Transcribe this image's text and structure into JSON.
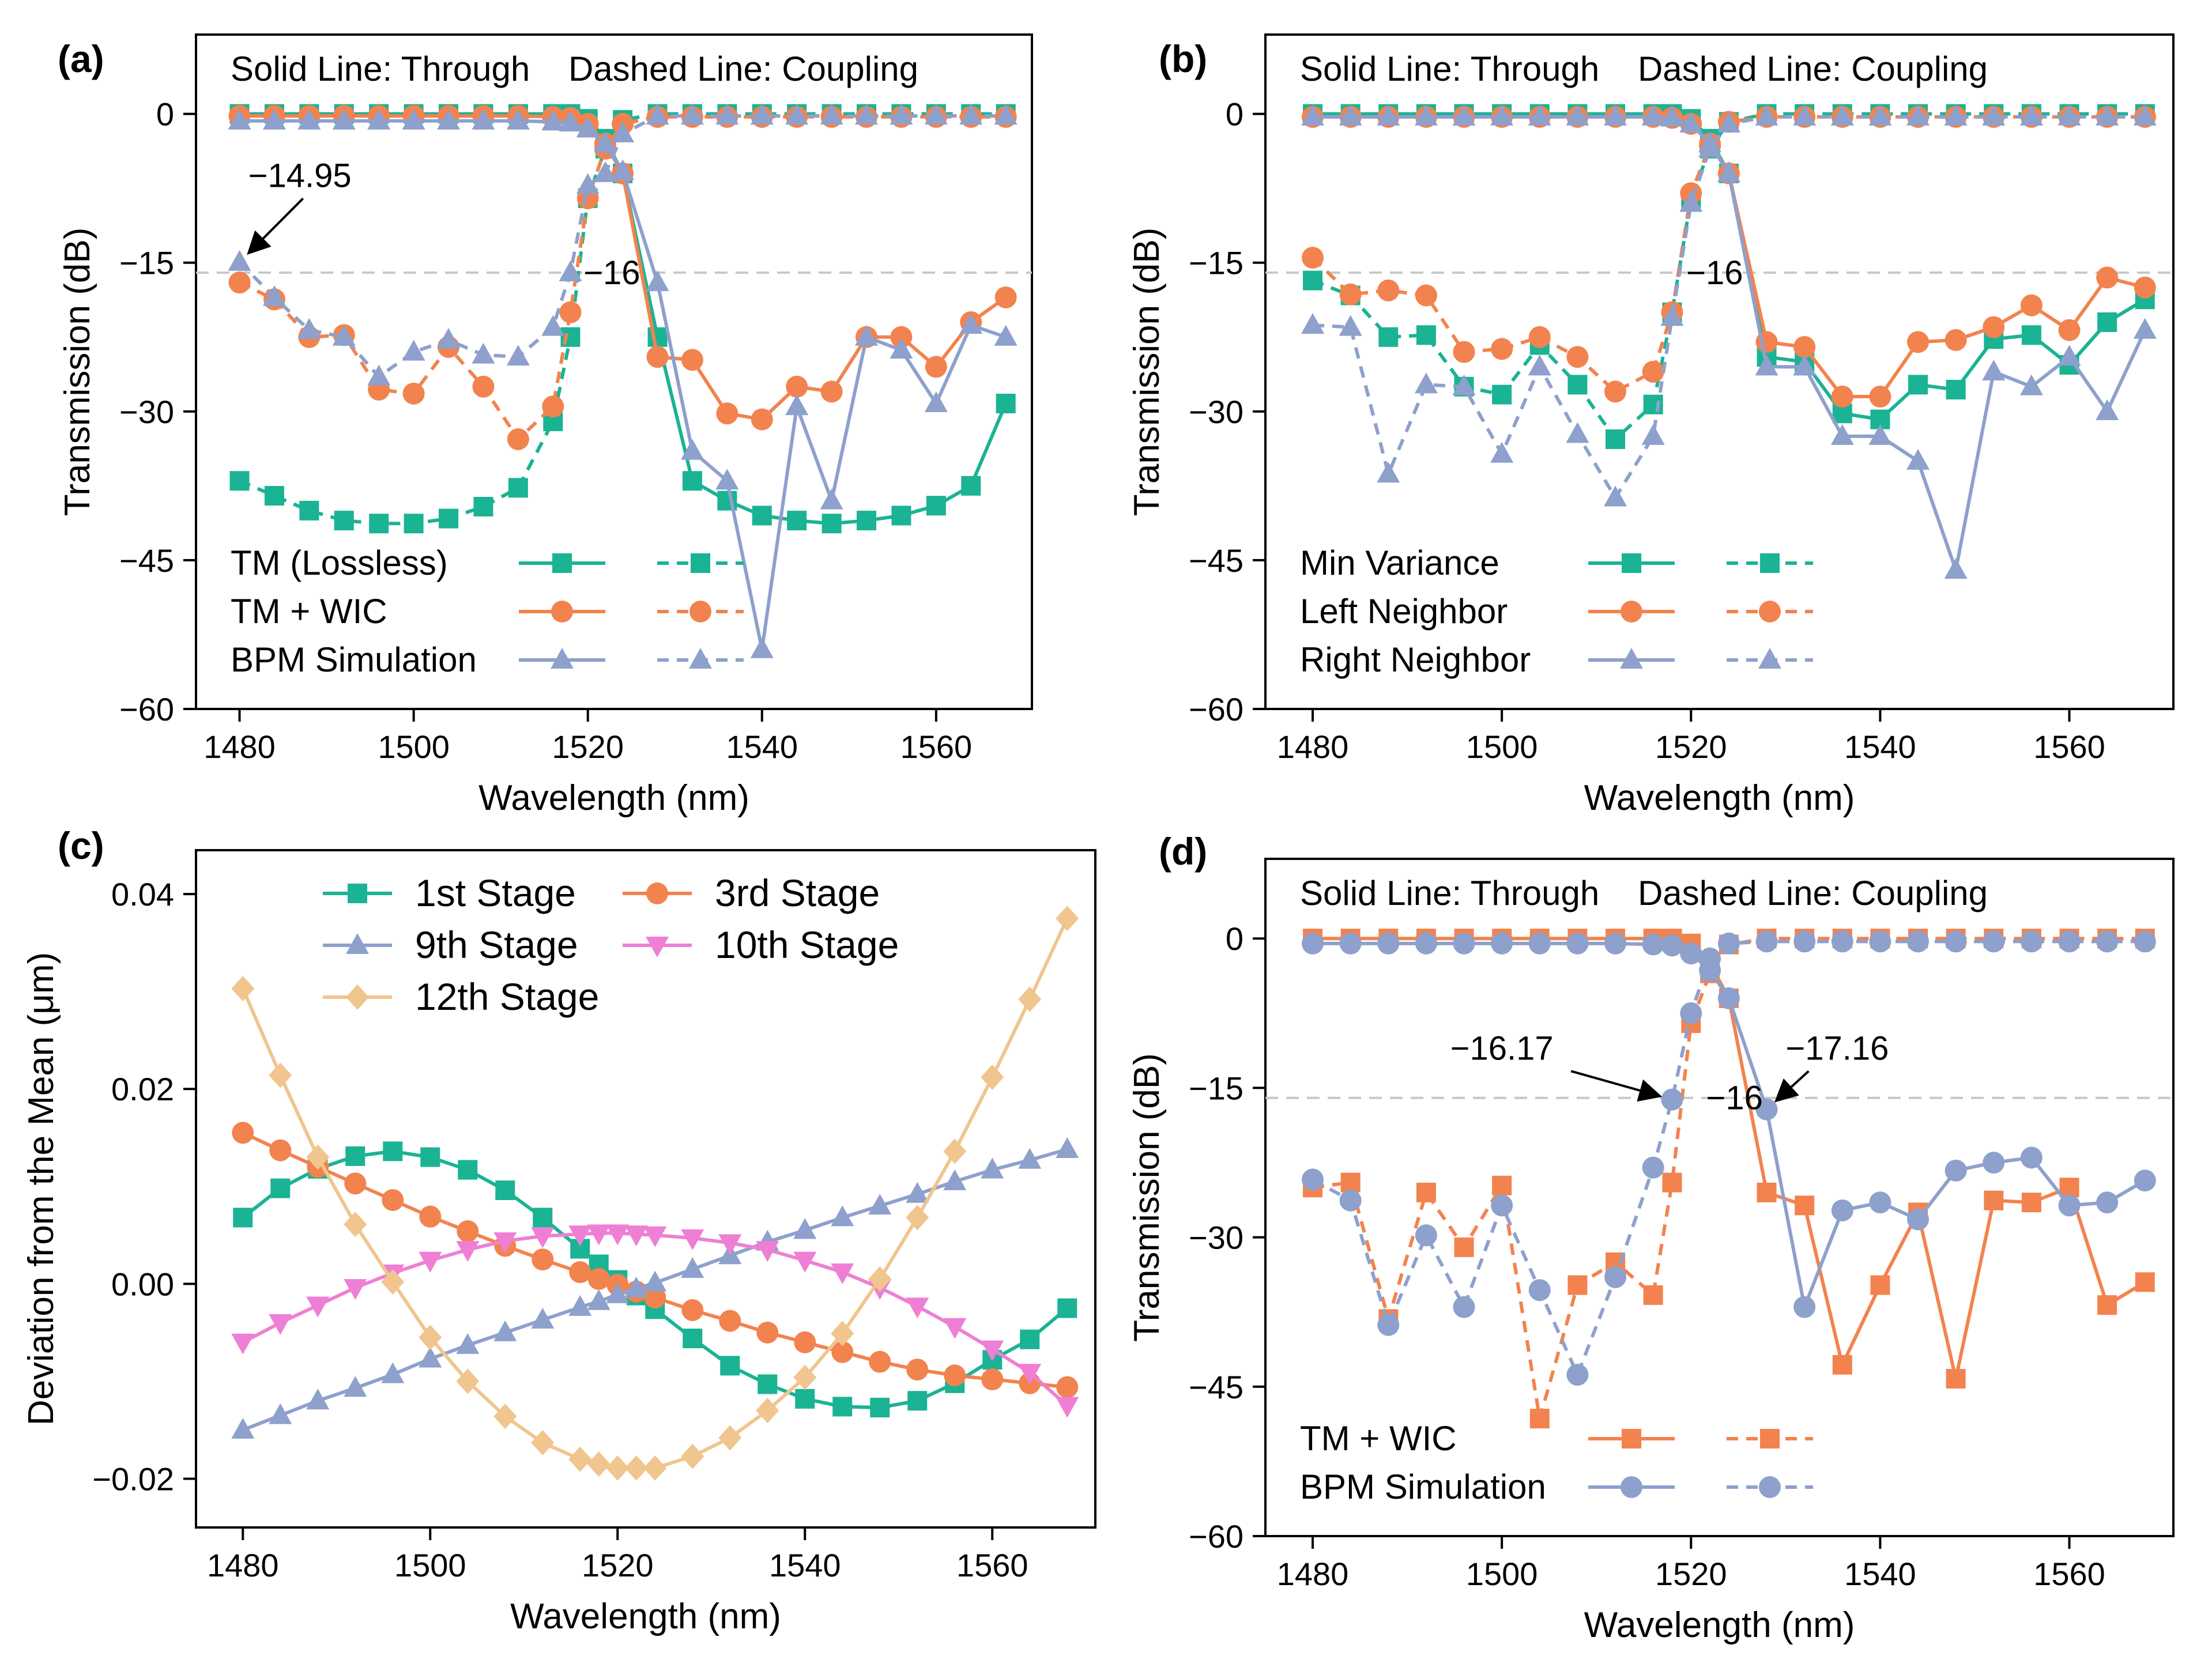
{
  "colors": {
    "tm_lossless": "#1ab394",
    "tm_wic": "#f2834e",
    "bpm": "#8ea0cc",
    "stage1": "#1ab394",
    "stage3": "#f2834e",
    "stage9": "#8ea0cc",
    "stage10": "#ee7fd4",
    "stage12": "#f0c58e",
    "ref_line": "#c8c8c8"
  },
  "chart_data": [
    {
      "panel": "(a)",
      "type": "line",
      "note": "Solid Line: Through    Dashed Line: Coupling",
      "xlabel": "Wavelength (nm)",
      "ylabel": "Transmission (dB)",
      "xlim": [
        1475,
        1571
      ],
      "ylim": [
        -60,
        8
      ],
      "xticks": [
        1480,
        1500,
        1520,
        1540,
        1560
      ],
      "yticks": [
        0,
        -15,
        -30,
        -45,
        -60
      ],
      "ytick_labels": [
        "0",
        "-15",
        "-30",
        "-45",
        "-60"
      ],
      "ref_line": -16,
      "x": [
        1480,
        1484,
        1488,
        1492,
        1496,
        1500,
        1504,
        1508,
        1512,
        1516,
        1518,
        1520,
        1522,
        1524,
        1528,
        1532,
        1536,
        1540,
        1544,
        1548,
        1552,
        1556,
        1560,
        1564,
        1568
      ],
      "series": [
        {
          "name": "TM (Lossless)",
          "color_key": "tm_lossless",
          "marker": "square",
          "style": "solid",
          "values": [
            0,
            0,
            0,
            0,
            0,
            0,
            0,
            0,
            0,
            0,
            0,
            -0.5,
            -2.5,
            -6,
            -22.5,
            -37,
            -39,
            -40.5,
            -41,
            -41.3,
            -41,
            -40.5,
            -39.5,
            -37.5,
            -29.2
          ]
        },
        {
          "name": "TM (Lossless)",
          "color_key": "tm_lossless",
          "marker": "square",
          "style": "dashed",
          "values": [
            -37,
            -38.5,
            -40,
            -41,
            -41.3,
            -41.3,
            -40.8,
            -39.6,
            -37.7,
            -31,
            -22.5,
            -8.5,
            -3.5,
            -0.6,
            0,
            0,
            0,
            0,
            0,
            0,
            0,
            0,
            0,
            0,
            0
          ]
        },
        {
          "name": "TM + WIC",
          "color_key": "tm_wic",
          "marker": "circle",
          "style": "solid",
          "values": [
            -0.2,
            -0.2,
            -0.2,
            -0.2,
            -0.2,
            -0.2,
            -0.2,
            -0.2,
            -0.2,
            -0.3,
            -0.4,
            -1,
            -3,
            -6,
            -24.5,
            -24.8,
            -30.2,
            -30.8,
            -27.5,
            -28,
            -22.5,
            -22.5,
            -25.5,
            -21,
            -18.5
          ]
        },
        {
          "name": "TM + WIC",
          "color_key": "tm_wic",
          "marker": "circle",
          "style": "dashed",
          "values": [
            -17,
            -18.7,
            -22.5,
            -22.3,
            -27.8,
            -28.2,
            -23.5,
            -27.5,
            -32.8,
            -29.5,
            -20,
            -8.5,
            -3.5,
            -1,
            -0.3,
            -0.3,
            -0.3,
            -0.3,
            -0.3,
            -0.3,
            -0.3,
            -0.3,
            -0.3,
            -0.3,
            -0.3
          ]
        },
        {
          "name": "BPM Simulation",
          "color_key": "bpm",
          "marker": "triangle",
          "style": "solid",
          "values": [
            -0.7,
            -0.7,
            -0.7,
            -0.7,
            -0.7,
            -0.7,
            -0.7,
            -0.7,
            -0.7,
            -0.8,
            -0.9,
            -1.5,
            -3,
            -5.8,
            -17,
            -34,
            -37,
            -54,
            -29.5,
            -39,
            -22.5,
            -23.8,
            -29.2,
            -21.3,
            -22.5
          ]
        },
        {
          "name": "BPM Simulation",
          "color_key": "bpm",
          "marker": "triangle",
          "style": "dashed",
          "values": [
            -14.95,
            -18.5,
            -21.8,
            -22.5,
            -26.5,
            -24,
            -22.8,
            -24.3,
            -24.5,
            -21.5,
            -16,
            -7.2,
            -6,
            -2,
            -0.2,
            -0.2,
            -0.2,
            -0.2,
            -0.2,
            -0.2,
            -0.2,
            -0.2,
            -0.2,
            -0.2,
            -0.2
          ]
        }
      ],
      "annotations": [
        {
          "text": "−14.95",
          "x": 1480,
          "y": -14.95,
          "label_x": 1481,
          "label_y": -6.2
        },
        {
          "text": "−16",
          "x": 1518,
          "y": -16,
          "label_x": 1519.5,
          "label_y": -16
        }
      ],
      "legend": [
        "TM (Lossless)",
        "TM + WIC",
        "BPM Simulation"
      ]
    },
    {
      "panel": "(b)",
      "type": "line",
      "note": "Solid Line: Through    Dashed Line: Coupling",
      "xlabel": "Wavelength (nm)",
      "ylabel": "Transmission (dB)",
      "xlim": [
        1475,
        1571
      ],
      "ylim": [
        -60,
        8
      ],
      "xticks": [
        1480,
        1500,
        1520,
        1540,
        1560
      ],
      "yticks": [
        0,
        -15,
        -30,
        -45,
        -60
      ],
      "ytick_labels": [
        "0",
        "-15",
        "-30",
        "-45",
        "-60"
      ],
      "ref_line": -16,
      "x": [
        1480,
        1484,
        1488,
        1492,
        1496,
        1500,
        1504,
        1508,
        1512,
        1516,
        1518,
        1520,
        1522,
        1524,
        1528,
        1532,
        1536,
        1540,
        1544,
        1548,
        1552,
        1556,
        1560,
        1564,
        1568
      ],
      "series": [
        {
          "name": "Min Variance",
          "color_key": "tm_lossless",
          "marker": "square",
          "style": "solid",
          "values": [
            0,
            0,
            0,
            0,
            0,
            0,
            0,
            0,
            0,
            0,
            0,
            -0.5,
            -2.5,
            -6,
            -24.5,
            -25,
            -30.2,
            -30.8,
            -27.3,
            -27.8,
            -22.7,
            -22.3,
            -25.3,
            -21,
            -18.7
          ]
        },
        {
          "name": "Min Variance",
          "color_key": "tm_lossless",
          "marker": "square",
          "style": "dashed",
          "values": [
            -16.8,
            -18.3,
            -22.5,
            -22.3,
            -27.5,
            -28.3,
            -23.3,
            -27.3,
            -32.8,
            -29.3,
            -20,
            -8.5,
            -3.5,
            -0.8,
            0,
            0,
            0,
            0,
            0,
            0,
            0,
            0,
            0,
            0,
            0
          ]
        },
        {
          "name": "Left Neighbor",
          "color_key": "tm_wic",
          "marker": "circle",
          "style": "solid",
          "values": [
            -0.3,
            -0.3,
            -0.3,
            -0.3,
            -0.3,
            -0.3,
            -0.3,
            -0.3,
            -0.3,
            -0.3,
            -0.4,
            -1,
            -3,
            -6,
            -23,
            -23.5,
            -28.5,
            -28.5,
            -23,
            -22.8,
            -21.5,
            -19.3,
            -21.8,
            -16.5,
            -17.5
          ]
        },
        {
          "name": "Left Neighbor",
          "color_key": "tm_wic",
          "marker": "circle",
          "style": "dashed",
          "values": [
            -14.5,
            -18.2,
            -17.8,
            -18.3,
            -24,
            -23.7,
            -22.5,
            -24.5,
            -28,
            -26,
            -20,
            -8,
            -3.2,
            -0.8,
            -0.3,
            -0.3,
            -0.3,
            -0.3,
            -0.3,
            -0.3,
            -0.3,
            -0.3,
            -0.3,
            -0.3,
            -0.3
          ]
        },
        {
          "name": "Right Neighbor",
          "color_key": "bpm",
          "marker": "triangle",
          "style": "solid",
          "values": [
            -0.3,
            -0.3,
            -0.3,
            -0.3,
            -0.3,
            -0.3,
            -0.3,
            -0.3,
            -0.3,
            -0.3,
            -0.4,
            -1,
            -3,
            -6,
            -25.5,
            -25.5,
            -32.5,
            -32.5,
            -35,
            -46,
            -26,
            -27.5,
            -24.5,
            -30,
            -21.8
          ]
        },
        {
          "name": "Right Neighbor",
          "color_key": "bpm",
          "marker": "triangle",
          "style": "dashed",
          "values": [
            -21.3,
            -21.5,
            -36.3,
            -27.3,
            -27.5,
            -34.3,
            -25.5,
            -32.3,
            -38.7,
            -32.5,
            -20.5,
            -9,
            -3.5,
            -1,
            -0.3,
            -0.3,
            -0.3,
            -0.3,
            -0.3,
            -0.3,
            -0.3,
            -0.3,
            -0.3,
            -0.3,
            -0.3
          ]
        }
      ],
      "annotations": [
        {
          "text": "−16",
          "x": 1518,
          "y": -16,
          "label_x": 1519.5,
          "label_y": -16
        }
      ],
      "legend": [
        "Min Variance",
        "Left Neighbor",
        "Right Neighbor"
      ]
    },
    {
      "panel": "(c)",
      "type": "line",
      "xlabel": "Wavelength (nm)",
      "ylabel": "Deviation from the Mean (μm)",
      "xlim": [
        1475,
        1571
      ],
      "ylim": [
        -0.025,
        0.0445
      ],
      "xticks": [
        1480,
        1500,
        1520,
        1540,
        1560
      ],
      "yticks": [
        0.04,
        0.02,
        0.0,
        -0.02
      ],
      "ytick_labels": [
        "0.04",
        "0.02",
        "0.00",
        "-0.02"
      ],
      "x": [
        1480,
        1484,
        1488,
        1492,
        1496,
        1500,
        1504,
        1508,
        1512,
        1516,
        1518,
        1520,
        1522,
        1524,
        1528,
        1532,
        1536,
        1540,
        1544,
        1548,
        1552,
        1556,
        1560,
        1564,
        1568
      ],
      "series": [
        {
          "name": "1st Stage",
          "color_key": "stage1",
          "marker": "square",
          "style": "solid",
          "values": [
            0.0068,
            0.0098,
            0.0118,
            0.0131,
            0.0136,
            0.013,
            0.0117,
            0.0096,
            0.0068,
            0.0036,
            0.002,
            0.0004,
            -0.0012,
            -0.0026,
            -0.0056,
            -0.0084,
            -0.0103,
            -0.0118,
            -0.0126,
            -0.0127,
            -0.012,
            -0.0102,
            -0.0078,
            -0.0057,
            -0.0025
          ]
        },
        {
          "name": "3rd Stage",
          "color_key": "stage3",
          "marker": "circle",
          "style": "solid",
          "values": [
            0.0155,
            0.0137,
            0.012,
            0.0103,
            0.0086,
            0.0069,
            0.0054,
            0.0039,
            0.0025,
            0.0012,
            0.0005,
            -0.0001,
            -0.0008,
            -0.0014,
            -0.0027,
            -0.0038,
            -0.005,
            -0.006,
            -0.007,
            -0.008,
            -0.0088,
            -0.0094,
            -0.0098,
            -0.0102,
            -0.0106
          ]
        },
        {
          "name": "9th Stage",
          "color_key": "stage9",
          "marker": "triangle",
          "style": "solid",
          "values": [
            -0.015,
            -0.0135,
            -0.012,
            -0.0107,
            -0.0093,
            -0.0077,
            -0.0063,
            -0.005,
            -0.0037,
            -0.0024,
            -0.0018,
            -0.0011,
            -0.0005,
            0.0001,
            0.0015,
            0.0029,
            0.0043,
            0.0055,
            0.0068,
            0.008,
            0.0092,
            0.0105,
            0.0117,
            0.0127,
            0.0138
          ]
        },
        {
          "name": "10th Stage",
          "color_key": "stage10",
          "marker": "triangle-down",
          "style": "solid",
          "values": [
            -0.006,
            -0.004,
            -0.0022,
            -0.0004,
            0.0011,
            0.0024,
            0.0035,
            0.0044,
            0.0049,
            0.0051,
            0.0052,
            0.0052,
            0.0051,
            0.005,
            0.0047,
            0.0042,
            0.0035,
            0.0024,
            0.0012,
            -0.0004,
            -0.0023,
            -0.0044,
            -0.0067,
            -0.0091,
            -0.0125
          ]
        },
        {
          "name": "12th Stage",
          "color_key": "stage12",
          "marker": "diamond",
          "style": "solid",
          "values": [
            0.0303,
            0.0214,
            0.013,
            0.0061,
            0.0002,
            -0.0055,
            -0.01,
            -0.0136,
            -0.0163,
            -0.018,
            -0.0185,
            -0.0189,
            -0.0189,
            -0.0189,
            -0.0177,
            -0.0158,
            -0.013,
            -0.0096,
            -0.0051,
            0.0005,
            0.0068,
            0.0136,
            0.0212,
            0.0292,
            0.0375
          ]
        }
      ],
      "legend": [
        "1st Stage",
        "3rd Stage",
        "9th Stage",
        "10th Stage",
        "12th Stage"
      ]
    },
    {
      "panel": "(d)",
      "type": "line",
      "note": "Solid Line: Through    Dashed Line: Coupling",
      "xlabel": "Wavelength (nm)",
      "ylabel": "Transmission (dB)",
      "xlim": [
        1475,
        1571
      ],
      "ylim": [
        -60,
        8
      ],
      "xticks": [
        1480,
        1500,
        1520,
        1540,
        1560
      ],
      "yticks": [
        0,
        -15,
        -30,
        -45,
        -60
      ],
      "ytick_labels": [
        "0",
        "-15",
        "-30",
        "-45",
        "-60"
      ],
      "ref_line": -16,
      "x": [
        1480,
        1484,
        1488,
        1492,
        1496,
        1500,
        1504,
        1508,
        1512,
        1516,
        1518,
        1520,
        1522,
        1524,
        1528,
        1532,
        1536,
        1540,
        1544,
        1548,
        1552,
        1556,
        1560,
        1564,
        1568
      ],
      "series": [
        {
          "name": "TM + WIC",
          "color_key": "tm_wic",
          "marker": "square",
          "style": "solid",
          "values": [
            0,
            0,
            0,
            0,
            0,
            0,
            0,
            0,
            0,
            0,
            0,
            -0.5,
            -2.5,
            -6,
            -25.5,
            -26.8,
            -42.8,
            -34.8,
            -27.5,
            -44.2,
            -26.3,
            -26.5,
            -25,
            -36.8,
            -34.5
          ]
        },
        {
          "name": "TM + WIC",
          "color_key": "tm_wic",
          "marker": "square",
          "style": "dashed",
          "values": [
            -25,
            -24.5,
            -38.2,
            -25.5,
            -31,
            -24.8,
            -48.2,
            -34.8,
            -32.5,
            -35.8,
            -24.5,
            -8.5,
            -3.5,
            -0.6,
            0,
            0,
            0,
            0,
            0,
            0,
            0,
            0,
            0,
            0,
            0
          ]
        },
        {
          "name": "BPM Simulation",
          "color_key": "bpm",
          "marker": "circle",
          "style": "solid",
          "values": [
            -0.5,
            -0.5,
            -0.5,
            -0.5,
            -0.5,
            -0.5,
            -0.5,
            -0.5,
            -0.5,
            -0.6,
            -0.7,
            -1.5,
            -3.2,
            -6,
            -17.16,
            -37,
            -27.3,
            -26.5,
            -28.2,
            -23.3,
            -22.5,
            -22,
            -26.8,
            -26.5,
            -24.3
          ]
        },
        {
          "name": "BPM Simulation",
          "color_key": "bpm",
          "marker": "circle",
          "style": "dashed",
          "values": [
            -24.2,
            -26.3,
            -38.8,
            -29.8,
            -37,
            -26.8,
            -35.3,
            -43.8,
            -34,
            -23,
            -16.17,
            -7.5,
            -2,
            -0.5,
            -0.3,
            -0.3,
            -0.3,
            -0.3,
            -0.3,
            -0.3,
            -0.3,
            -0.3,
            -0.3,
            -0.3,
            -0.3
          ]
        }
      ],
      "annotations": [
        {
          "text": "−16.17",
          "x": 1518,
          "y": -16.17,
          "label_x": 1500,
          "label_y": -11
        },
        {
          "text": "−17.16",
          "x": 1528,
          "y": -17.16,
          "label_x": 1530,
          "label_y": -11
        },
        {
          "text": "−16",
          "x": 1522,
          "y": -16,
          "label_x": 1521.6,
          "label_y": -16
        }
      ],
      "legend": [
        "TM + WIC",
        "BPM Simulation"
      ]
    }
  ]
}
